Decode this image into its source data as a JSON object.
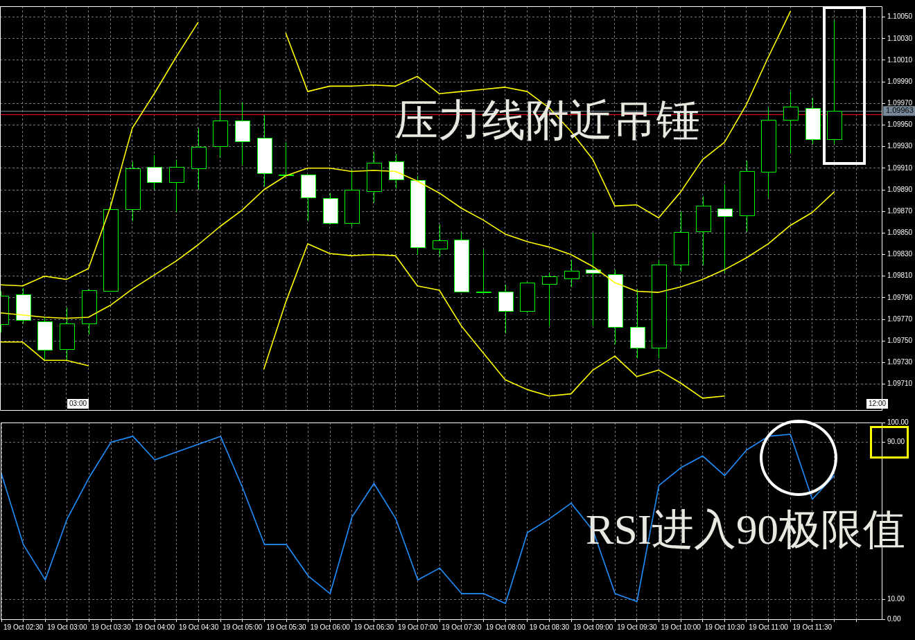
{
  "chart_data": [
    {
      "type": "candlestick",
      "color": "#00ff00",
      "colors": [
        "#000000",
        "#ffffff",
        "#ffffff",
        "#000000",
        "#000000",
        "#000000",
        "#000000",
        "#ffffff",
        "#000000",
        "#000000",
        "#000000",
        "#ffffff",
        "#ffffff",
        "#00ff00",
        "#ffffff",
        "#ffffff",
        "#000000",
        "#000000",
        "#ffffff",
        "#ffffff",
        "#000000",
        "#ffffff",
        "#00ff00",
        "#ffffff",
        "#000000",
        "#000000",
        "#000000",
        "#ffffff",
        "#ffffff",
        "#ffffff",
        "#000000",
        "#000000",
        "#000000",
        "#ffffff",
        "#000000",
        "#000000",
        "#000000",
        "#ffffff",
        "#000000"
      ],
      "categories": [
        null,
        null,
        null,
        null,
        null,
        null,
        null,
        null,
        null,
        null,
        null,
        null,
        null,
        null,
        null,
        null,
        null,
        null,
        null,
        null,
        null,
        null,
        null,
        null,
        null,
        null,
        null,
        null,
        null,
        null,
        null,
        null,
        null,
        null,
        null,
        null,
        null,
        null,
        null
      ],
      "ohlc": [
        [
          1.09766,
          1.09796,
          1.09758,
          1.09792
        ],
        [
          1.09793,
          1.09799,
          1.09766,
          1.09769
        ],
        [
          1.09768,
          1.09772,
          1.09732,
          1.09742
        ],
        [
          1.09742,
          1.09781,
          1.09732,
          1.09766
        ],
        [
          1.09766,
          1.09798,
          1.09756,
          1.09797
        ],
        [
          1.09796,
          1.09878,
          1.09796,
          1.09872
        ],
        [
          1.09872,
          1.09916,
          1.09861,
          1.0991
        ],
        [
          1.09911,
          1.09922,
          1.0989,
          1.09897
        ],
        [
          1.09897,
          1.09918,
          1.09869,
          1.09911
        ],
        [
          1.0991,
          1.09947,
          1.0989,
          1.0993
        ],
        [
          1.0993,
          1.09983,
          1.0992,
          1.09954
        ],
        [
          1.09954,
          1.09971,
          1.09913,
          1.09935
        ],
        [
          1.09938,
          1.09959,
          1.09893,
          1.09905
        ],
        [
          1.09904,
          1.09934,
          1.09903,
          1.09904
        ],
        [
          1.09904,
          1.09904,
          1.09861,
          1.09883
        ],
        [
          1.09882,
          1.09887,
          1.09858,
          1.09859
        ],
        [
          1.09859,
          1.09909,
          1.09856,
          1.0989
        ],
        [
          1.09889,
          1.09925,
          1.09878,
          1.09915
        ],
        [
          1.09916,
          1.09923,
          1.09891,
          1.09899
        ],
        [
          1.09899,
          1.09903,
          1.0983,
          1.09837
        ],
        [
          1.09835,
          1.09858,
          1.09828,
          1.09843
        ],
        [
          1.09844,
          1.09851,
          1.09796,
          1.09796
        ],
        [
          1.09796,
          1.09835,
          1.09795,
          1.09796
        ],
        [
          1.09796,
          1.09802,
          1.09757,
          1.09778
        ],
        [
          1.09778,
          1.09804,
          1.09776,
          1.09804
        ],
        [
          1.09803,
          1.09813,
          1.09764,
          1.0981
        ],
        [
          1.09808,
          1.09825,
          1.098,
          1.09815
        ],
        [
          1.09816,
          1.0985,
          1.09764,
          1.09813
        ],
        [
          1.09812,
          1.09816,
          1.09747,
          1.09763
        ],
        [
          1.09763,
          1.09798,
          1.09734,
          1.09744
        ],
        [
          1.09744,
          1.09825,
          1.09734,
          1.09821
        ],
        [
          1.09821,
          1.0987,
          1.09814,
          1.09851
        ],
        [
          1.09851,
          1.09884,
          1.0982,
          1.09875
        ],
        [
          1.09873,
          1.09895,
          1.09813,
          1.09866
        ],
        [
          1.09866,
          1.09917,
          1.09851,
          1.09907
        ],
        [
          1.09907,
          1.09966,
          1.09883,
          1.09955
        ],
        [
          1.09955,
          1.09981,
          1.09924,
          1.09967
        ],
        [
          1.09966,
          1.09975,
          1.09932,
          1.09937
        ],
        [
          1.09937,
          1.10047,
          1.09932,
          1.09963
        ]
      ],
      "series": [
        {
          "type": "line",
          "color": "#ffff00",
          "values": [
            1.09802,
            1.09801,
            1.0981,
            1.09807,
            1.09817,
            1.09874,
            1.09947,
            1.09979,
            1.10013,
            1.10045,
            null,
            null,
            null,
            1.10035,
            1.09981,
            1.09986,
            1.09986,
            1.09987,
            1.09986,
            1.09995,
            1.09979,
            1.09981,
            1.09983,
            1.09985,
            1.09981,
            1.09966,
            1.09944,
            1.09918,
            1.09875,
            1.09876,
            1.09864,
            1.09888,
            1.09918,
            1.09934,
            1.09969,
            1.10013,
            1.10055,
            null,
            null
          ]
        },
        {
          "type": "line",
          "color": "#ffff00",
          "values": [
            1.09776,
            1.09774,
            1.09772,
            1.09771,
            1.09772,
            1.09783,
            1.09798,
            1.09811,
            1.09824,
            1.09839,
            1.09856,
            1.09871,
            1.0989,
            1.09903,
            1.0991,
            1.0991,
            1.09907,
            1.09908,
            1.09907,
            1.09898,
            1.09887,
            1.09873,
            1.09862,
            1.09849,
            1.09842,
            1.09837,
            1.0983,
            1.09819,
            1.09804,
            1.09796,
            1.09795,
            1.098,
            1.09807,
            1.09816,
            1.09827,
            1.0984,
            1.09857,
            1.09869,
            1.09888
          ]
        },
        {
          "type": "line",
          "color": "#ffff00",
          "values": [
            1.09749,
            1.09749,
            1.09732,
            1.09732,
            1.09727,
            null,
            null,
            null,
            null,
            null,
            null,
            null,
            1.09724,
            1.09786,
            1.0984,
            1.09831,
            1.09829,
            1.0983,
            1.09829,
            1.09801,
            1.09797,
            1.09764,
            1.09739,
            1.09714,
            1.09705,
            1.09699,
            1.09701,
            1.09723,
            1.09736,
            1.09717,
            1.09723,
            1.09711,
            1.09697,
            1.09699,
            null,
            null,
            null,
            null,
            null
          ]
        }
      ],
      "ylim": [
        1.09686,
        1.1006
      ],
      "yticks": [
        {
          "value": 1.0971,
          "label": "1.09710"
        },
        {
          "value": 1.0973,
          "label": "1.09730"
        },
        {
          "value": 1.0975,
          "label": "1.09750"
        },
        {
          "value": 1.0977,
          "label": "1.09770"
        },
        {
          "value": 1.0979,
          "label": "1.09790"
        },
        {
          "value": 1.0981,
          "label": "1.09810"
        },
        {
          "value": 1.0983,
          "label": "1.09830"
        },
        {
          "value": 1.0985,
          "label": "1.09850"
        },
        {
          "value": 1.0987,
          "label": "1.09870"
        },
        {
          "value": 1.0989,
          "label": "1.09890"
        },
        {
          "value": 1.0991,
          "label": "1.09910"
        },
        {
          "value": 1.0993,
          "label": "1.09930"
        },
        {
          "value": 1.0995,
          "label": "1.09950"
        },
        {
          "value": 1.0997,
          "label": "1.09970"
        },
        {
          "value": 1.0999,
          "label": "1.09990"
        },
        {
          "value": 1.1001,
          "label": "1.10010"
        },
        {
          "value": 1.1003,
          "label": "1.10030"
        },
        {
          "value": 1.1005,
          "label": "1.10050"
        }
      ],
      "ref_lines": [
        {
          "axis": "y",
          "value": 1.0996,
          "color": "#ff0000"
        },
        {
          "axis": "y",
          "value": 1.09963,
          "label": "1.09963",
          "color": "#778899"
        }
      ],
      "annotations": [
        "压力线附近吊锤",
        "03:00",
        "12:00"
      ],
      "grid": true,
      "tick_labels": "y"
    },
    {
      "type": "line",
      "categories": [
        null,
        "19 Oct 02:30",
        null,
        "19 Oct 03:00",
        null,
        "19 Oct 03:30",
        null,
        "19 Oct 04:00",
        null,
        "19 Oct 04:30",
        null,
        "19 Oct 05:00",
        null,
        "19 Oct 05:30",
        null,
        "19 Oct 06:00",
        null,
        "19 Oct 06:30",
        null,
        "19 Oct 07:00",
        null,
        "19 Oct 07:30",
        null,
        "19 Oct 08:00",
        null,
        "19 Oct 08:30",
        null,
        "19 Oct 09:00",
        null,
        "19 Oct 09:30",
        null,
        "19 Oct 10:00",
        null,
        "19 Oct 10:30",
        null,
        "19 Oct 11:00",
        null,
        "19 Oct 11:30",
        null
      ],
      "series": [
        {
          "color": "#1e90ff",
          "values": [
            74,
            38,
            20,
            51,
            72,
            90,
            93,
            81,
            85,
            89,
            93,
            67,
            38,
            38,
            22,
            13,
            52,
            69,
            51,
            20,
            26,
            13,
            13,
            8,
            44,
            51,
            59,
            45,
            13,
            9,
            68,
            77,
            83,
            73,
            86,
            93,
            94,
            61,
            73
          ]
        }
      ],
      "ylim": [
        0,
        100
      ],
      "yticks": [
        {
          "value": 0,
          "label": "0.00"
        },
        {
          "value": 10,
          "label": "10.00"
        },
        {
          "value": 90,
          "label": "90.00"
        },
        {
          "value": 100,
          "label": "100.00"
        }
      ],
      "annotations": [
        "RSI进入90极限值"
      ],
      "grid": true
    }
  ]
}
